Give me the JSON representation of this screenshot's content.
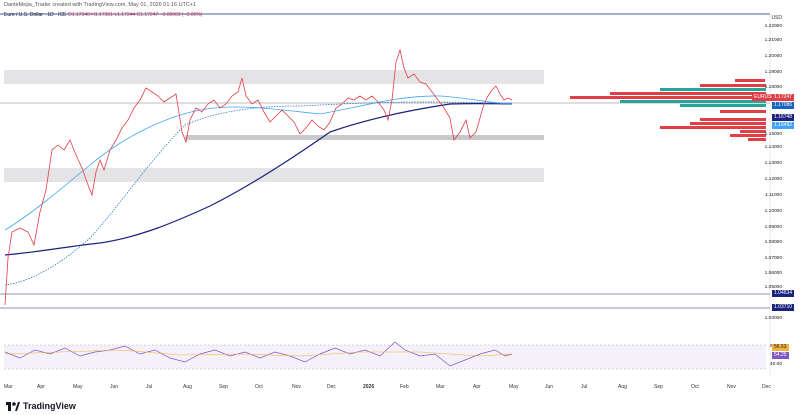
{
  "header": {
    "creator_text": "DanteMejia_Trader created with TradingView.com, May 01, 2026 01:16 UTC+1"
  },
  "legend": {
    "symbol": "Euro / U.S. Dollar · 1D · ICE",
    "ohlc": "O1.17340 H1.17361 L1.17244 C1.17247 −0.00069 (−0.06%)"
  },
  "axis": {
    "currency": "USD",
    "price_ticks": [
      "1.22000",
      "1.21000",
      "1.20000",
      "1.19000",
      "1.18000",
      "1.17000",
      "1.16000",
      "1.15000",
      "1.14000",
      "1.13000",
      "1.12000",
      "1.11000",
      "1.10000",
      "1.09000",
      "1.08000",
      "1.07000",
      "1.06000",
      "1.05000",
      "1.04000",
      "1.03000"
    ],
    "rsi_ticks": [
      "60.00",
      "40.00"
    ],
    "months": [
      "Mar",
      "Apr",
      "May",
      "Jun",
      "Jul",
      "Aug",
      "Sep",
      "Oct",
      "Nov",
      "Dec",
      "2026",
      "Feb",
      "Mar",
      "Apr",
      "May",
      "Jun",
      "Jul",
      "Aug",
      "Sep",
      "Oct",
      "Nov",
      "Dec"
    ]
  },
  "tags": {
    "eurusd_label": "EURUSD",
    "eurusd_price": "1.17247",
    "ma_short": "1.17086",
    "ma_mid": "1.16748",
    "ma_long": "1.16492",
    "low_level_1": "1.04634",
    "low_level_2": "1.03710",
    "rsi_1": "56.53",
    "rsi_2": "54.25"
  },
  "colors": {
    "up": "#26a69a",
    "down": "#e03f48",
    "ma_long": "#1a237e",
    "ma_mid": "#42a5f5",
    "ma_short": "#1565c0",
    "zone": "#e0e0e3",
    "rsi": "#7e57c2"
  },
  "footer": {
    "brand": "TradingView"
  }
}
